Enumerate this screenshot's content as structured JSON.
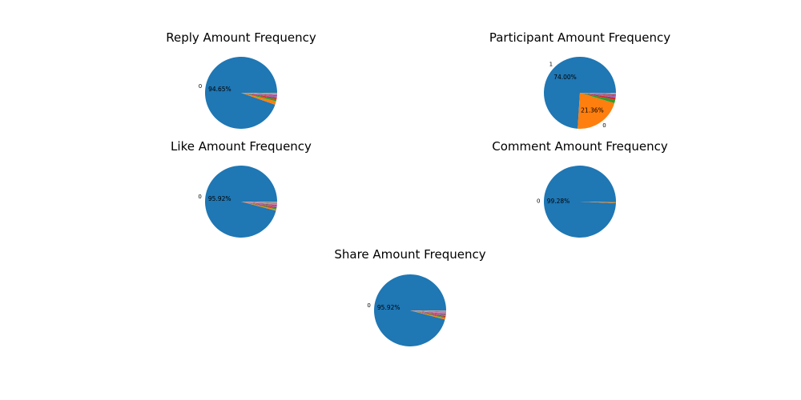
{
  "chart_data": [
    {
      "type": "pie",
      "title": "Reply Amount Frequency",
      "slices": [
        {
          "label": "0",
          "percent": 94.65,
          "color": "#1f77b4",
          "show_label": true,
          "show_pct": true
        },
        {
          "label": "",
          "percent": 1.6,
          "color": "#ff7f0e",
          "show_label": false,
          "show_pct": false
        },
        {
          "label": "",
          "percent": 0.9,
          "color": "#2ca02c",
          "show_label": false,
          "show_pct": false
        },
        {
          "label": "",
          "percent": 0.7,
          "color": "#d62728",
          "show_label": false,
          "show_pct": false
        },
        {
          "label": "",
          "percent": 0.6,
          "color": "#9467bd",
          "show_label": false,
          "show_pct": false
        },
        {
          "label": "",
          "percent": 0.5,
          "color": "#8c564b",
          "show_label": false,
          "show_pct": false
        },
        {
          "label": "",
          "percent": 0.4,
          "color": "#e377c2",
          "show_label": false,
          "show_pct": false
        },
        {
          "label": "",
          "percent": 0.35,
          "color": "#7f7f7f",
          "show_label": false,
          "show_pct": false
        },
        {
          "label": "",
          "percent": 0.3,
          "color": "#bcbd22",
          "show_label": false,
          "show_pct": false
        }
      ]
    },
    {
      "type": "pie",
      "title": "Participant Amount Frequency",
      "slices": [
        {
          "label": "1",
          "percent": 74.0,
          "color": "#1f77b4",
          "show_label": true,
          "show_pct": true
        },
        {
          "label": "0",
          "percent": 21.36,
          "color": "#ff7f0e",
          "show_label": true,
          "show_pct": true
        },
        {
          "label": "",
          "percent": 1.5,
          "color": "#2ca02c",
          "show_label": false,
          "show_pct": false
        },
        {
          "label": "",
          "percent": 1.0,
          "color": "#d62728",
          "show_label": false,
          "show_pct": false
        },
        {
          "label": "",
          "percent": 0.8,
          "color": "#9467bd",
          "show_label": false,
          "show_pct": false
        },
        {
          "label": "",
          "percent": 0.6,
          "color": "#8c564b",
          "show_label": false,
          "show_pct": false
        },
        {
          "label": "",
          "percent": 0.5,
          "color": "#e377c2",
          "show_label": false,
          "show_pct": false
        },
        {
          "label": "",
          "percent": 0.24,
          "color": "#7f7f7f",
          "show_label": false,
          "show_pct": false
        }
      ]
    },
    {
      "type": "pie",
      "title": "Like Amount Frequency",
      "slices": [
        {
          "label": "0",
          "percent": 95.92,
          "color": "#1f77b4",
          "show_label": true,
          "show_pct": true
        },
        {
          "label": "",
          "percent": 0.6,
          "color": "#ff7f0e",
          "show_label": false,
          "show_pct": false
        },
        {
          "label": "",
          "percent": 0.5,
          "color": "#2ca02c",
          "show_label": false,
          "show_pct": false
        },
        {
          "label": "",
          "percent": 0.5,
          "color": "#d62728",
          "show_label": false,
          "show_pct": false
        },
        {
          "label": "",
          "percent": 0.5,
          "color": "#9467bd",
          "show_label": false,
          "show_pct": false
        },
        {
          "label": "",
          "percent": 0.5,
          "color": "#8c564b",
          "show_label": false,
          "show_pct": false
        },
        {
          "label": "",
          "percent": 0.5,
          "color": "#e377c2",
          "show_label": false,
          "show_pct": false
        },
        {
          "label": "",
          "percent": 0.48,
          "color": "#7f7f7f",
          "show_label": false,
          "show_pct": false
        },
        {
          "label": "",
          "percent": 0.5,
          "color": "#a9a9a9",
          "show_label": false,
          "show_pct": false
        }
      ]
    },
    {
      "type": "pie",
      "title": "Comment Amount Frequency",
      "slices": [
        {
          "label": "0",
          "percent": 99.28,
          "color": "#1f77b4",
          "show_label": true,
          "show_pct": true
        },
        {
          "label": "",
          "percent": 0.2,
          "color": "#ff7f0e",
          "show_label": false,
          "show_pct": false
        },
        {
          "label": "",
          "percent": 0.15,
          "color": "#2ca02c",
          "show_label": false,
          "show_pct": false
        },
        {
          "label": "",
          "percent": 0.15,
          "color": "#d62728",
          "show_label": false,
          "show_pct": false
        },
        {
          "label": "",
          "percent": 0.22,
          "color": "#7f7f7f",
          "show_label": false,
          "show_pct": false
        }
      ]
    },
    {
      "type": "pie",
      "title": "Share Amount Frequency",
      "slices": [
        {
          "label": "0",
          "percent": 95.92,
          "color": "#1f77b4",
          "show_label": true,
          "show_pct": true
        },
        {
          "label": "",
          "percent": 0.6,
          "color": "#ff7f0e",
          "show_label": false,
          "show_pct": false
        },
        {
          "label": "",
          "percent": 0.5,
          "color": "#2ca02c",
          "show_label": false,
          "show_pct": false
        },
        {
          "label": "",
          "percent": 0.5,
          "color": "#d62728",
          "show_label": false,
          "show_pct": false
        },
        {
          "label": "",
          "percent": 0.5,
          "color": "#9467bd",
          "show_label": false,
          "show_pct": false
        },
        {
          "label": "",
          "percent": 0.5,
          "color": "#8c564b",
          "show_label": false,
          "show_pct": false
        },
        {
          "label": "",
          "percent": 0.5,
          "color": "#e377c2",
          "show_label": false,
          "show_pct": false
        },
        {
          "label": "",
          "percent": 0.48,
          "color": "#7f7f7f",
          "show_label": false,
          "show_pct": false
        },
        {
          "label": "",
          "percent": 0.5,
          "color": "#a9a9a9",
          "show_label": false,
          "show_pct": false
        }
      ]
    }
  ]
}
